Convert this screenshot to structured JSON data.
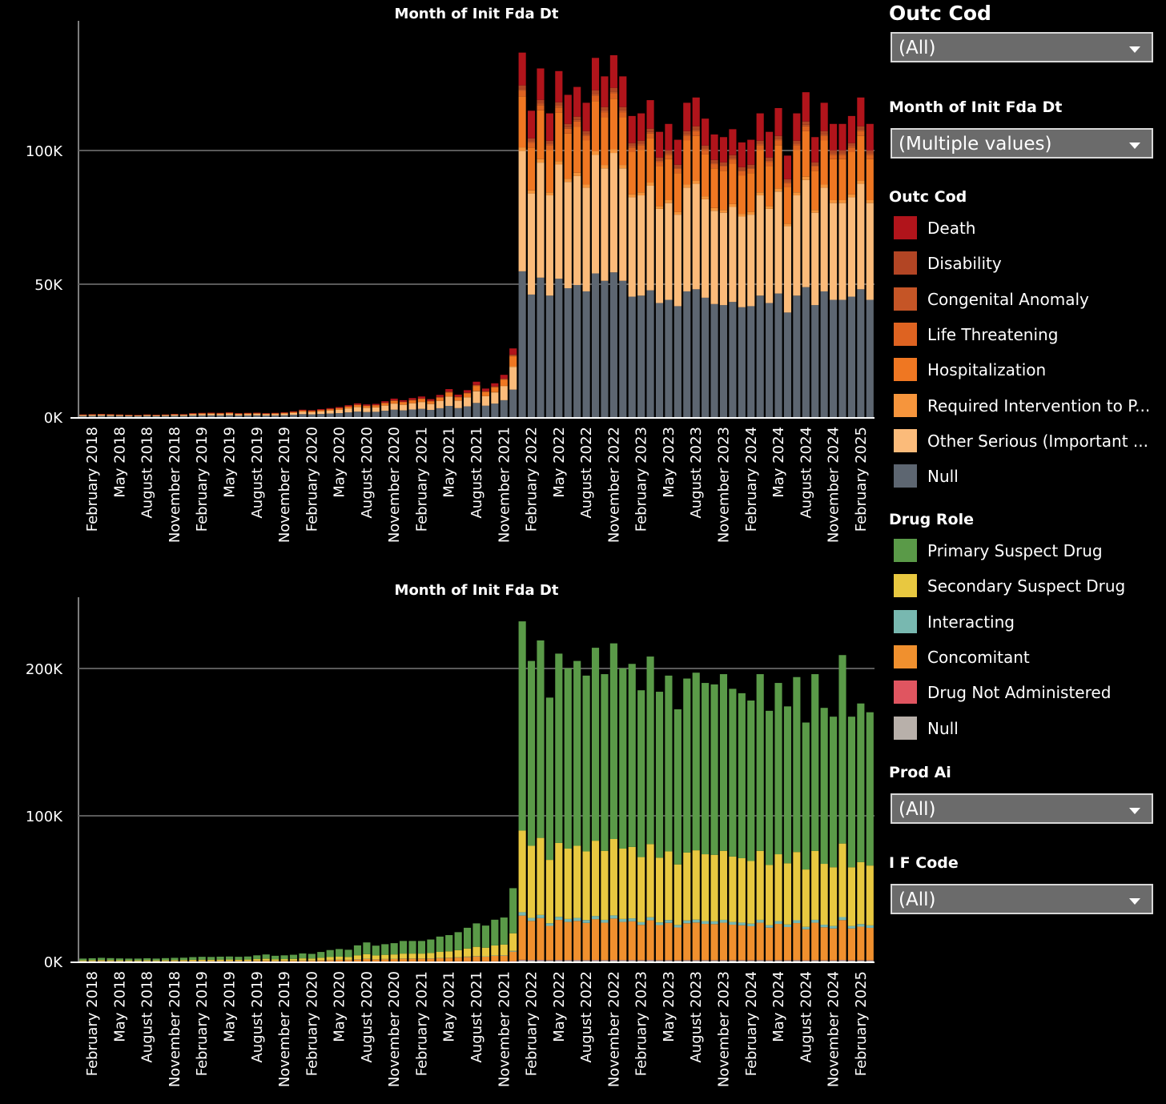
{
  "chart_data": [
    {
      "type": "bar",
      "stacked": true,
      "title": "Month of Init Fda Dt",
      "yticks": [
        "0K",
        "50K",
        "100K"
      ],
      "ylim": [
        0,
        147000
      ],
      "x_tick_labels": [
        "February 2018",
        "May 2018",
        "August 2018",
        "November 2018",
        "February 2019",
        "May 2019",
        "August 2019",
        "November 2019",
        "February 2020",
        "May 2020",
        "August 2020",
        "November 2020",
        "February 2021",
        "May 2021",
        "August 2021",
        "November 2021",
        "February 2022",
        "May 2022",
        "August 2022",
        "November 2022",
        "February 2023",
        "May 2023",
        "August 2023",
        "November 2023",
        "February 2024",
        "May 2024",
        "August 2024",
        "November 2024",
        "February 2025"
      ],
      "categories": [
        "Jan 2018",
        "Feb 2018",
        "Mar 2018",
        "Apr 2018",
        "May 2018",
        "Jun 2018",
        "Jul 2018",
        "Aug 2018",
        "Sep 2018",
        "Oct 2018",
        "Nov 2018",
        "Dec 2018",
        "Jan 2019",
        "Feb 2019",
        "Mar 2019",
        "Apr 2019",
        "May 2019",
        "Jun 2019",
        "Jul 2019",
        "Aug 2019",
        "Sep 2019",
        "Oct 2019",
        "Nov 2019",
        "Dec 2019",
        "Jan 2020",
        "Feb 2020",
        "Mar 2020",
        "Apr 2020",
        "May 2020",
        "Jun 2020",
        "Jul 2020",
        "Aug 2020",
        "Sep 2020",
        "Oct 2020",
        "Nov 2020",
        "Dec 2020",
        "Jan 2021",
        "Feb 2021",
        "Mar 2021",
        "Apr 2021",
        "May 2021",
        "Jun 2021",
        "Jul 2021",
        "Aug 2021",
        "Sep 2021",
        "Oct 2021",
        "Nov 2021",
        "Dec 2021",
        "Jan 2022",
        "Feb 2022",
        "Mar 2022",
        "Apr 2022",
        "May 2022",
        "Jun 2022",
        "Jul 2022",
        "Aug 2022",
        "Sep 2022",
        "Oct 2022",
        "Nov 2022",
        "Dec 2022",
        "Jan 2023",
        "Feb 2023",
        "Mar 2023",
        "Apr 2023",
        "May 2023",
        "Jun 2023",
        "Jul 2023",
        "Aug 2023",
        "Sep 2023",
        "Oct 2023",
        "Nov 2023",
        "Dec 2023",
        "Jan 2024",
        "Feb 2024",
        "Mar 2024",
        "Apr 2024",
        "May 2024",
        "Jun 2024",
        "Jul 2024",
        "Aug 2024",
        "Sep 2024",
        "Oct 2024",
        "Nov 2024",
        "Dec 2024",
        "Jan 2025",
        "Feb 2025",
        "Mar 2025"
      ],
      "totals": [
        1000,
        1100,
        1200,
        1100,
        1000,
        900,
        800,
        1000,
        900,
        1000,
        1200,
        1100,
        1500,
        1600,
        1700,
        1600,
        1800,
        1500,
        1600,
        1700,
        1500,
        1600,
        1800,
        2200,
        2800,
        2600,
        3000,
        3400,
        3800,
        4500,
        5200,
        4800,
        5000,
        6000,
        7000,
        6400,
        7200,
        7800,
        6800,
        8400,
        10600,
        8500,
        10200,
        13400,
        10800,
        12800,
        16000,
        26000,
        138000,
        116000,
        132000,
        115000,
        131000,
        122000,
        125000,
        119000,
        136000,
        129000,
        137000,
        129000,
        114000,
        115000,
        120000,
        108000,
        111000,
        105000,
        119000,
        121000,
        113000,
        107000,
        106000,
        109000,
        104000,
        105000,
        115000,
        108000,
        117000,
        99000,
        115000,
        123000,
        106000,
        119000,
        111000,
        111000,
        114000,
        121000,
        111000
      ],
      "segment_fractions": [
        {
          "name": "Null",
          "value": 0.4
        },
        {
          "name": "Other Serious (Important ...",
          "value": 0.33
        },
        {
          "name": "Required Intervention to P...",
          "value": 0.01
        },
        {
          "name": "Hospitalization",
          "value": 0.14
        },
        {
          "name": "Life Threatening",
          "value": 0.015
        },
        {
          "name": "Congenital Anomaly",
          "value": 0.005
        },
        {
          "name": "Disability",
          "value": 0.01
        },
        {
          "name": "Death",
          "value": 0.09
        }
      ]
    },
    {
      "type": "bar",
      "stacked": true,
      "title": "Month of Init Fda Dt",
      "yticks": [
        "0K",
        "100K",
        "200K"
      ],
      "ylim": [
        0,
        243000
      ],
      "x_tick_labels": [
        "February 2018",
        "May 2018",
        "August 2018",
        "November 2018",
        "February 2019",
        "May 2019",
        "August 2019",
        "November 2019",
        "February 2020",
        "May 2020",
        "August 2020",
        "November 2020",
        "February 2021",
        "May 2021",
        "August 2021",
        "November 2021",
        "February 2022",
        "May 2022",
        "August 2022",
        "November 2022",
        "February 2023",
        "May 2023",
        "August 2023",
        "November 2023",
        "February 2024",
        "May 2024",
        "August 2024",
        "November 2024",
        "February 2025"
      ],
      "categories": [
        "Jan 2018",
        "Feb 2018",
        "Mar 2018",
        "Apr 2018",
        "May 2018",
        "Jun 2018",
        "Jul 2018",
        "Aug 2018",
        "Sep 2018",
        "Oct 2018",
        "Nov 2018",
        "Dec 2018",
        "Jan 2019",
        "Feb 2019",
        "Mar 2019",
        "Apr 2019",
        "May 2019",
        "Jun 2019",
        "Jul 2019",
        "Aug 2019",
        "Sep 2019",
        "Oct 2019",
        "Nov 2019",
        "Dec 2019",
        "Jan 2020",
        "Feb 2020",
        "Mar 2020",
        "Apr 2020",
        "May 2020",
        "Jun 2020",
        "Jul 2020",
        "Aug 2020",
        "Sep 2020",
        "Oct 2020",
        "Nov 2020",
        "Dec 2020",
        "Jan 2021",
        "Feb 2021",
        "Mar 2021",
        "Apr 2021",
        "May 2021",
        "Jun 2021",
        "Jul 2021",
        "Aug 2021",
        "Sep 2021",
        "Oct 2021",
        "Nov 2021",
        "Dec 2021",
        "Jan 2022",
        "Feb 2022",
        "Mar 2022",
        "Apr 2022",
        "May 2022",
        "Jun 2022",
        "Jul 2022",
        "Aug 2022",
        "Sep 2022",
        "Oct 2022",
        "Nov 2022",
        "Dec 2022",
        "Jan 2023",
        "Feb 2023",
        "Mar 2023",
        "Apr 2023",
        "May 2023",
        "Jun 2023",
        "Jul 2023",
        "Aug 2023",
        "Sep 2023",
        "Oct 2023",
        "Nov 2023",
        "Dec 2023",
        "Jan 2024",
        "Feb 2024",
        "Mar 2024",
        "Apr 2024",
        "May 2024",
        "Jun 2024",
        "Jul 2024",
        "Aug 2024",
        "Sep 2024",
        "Oct 2024",
        "Nov 2024",
        "Dec 2024",
        "Jan 2025",
        "Feb 2025",
        "Mar 2025"
      ],
      "totals": [
        2000,
        2200,
        2500,
        2300,
        2100,
        2000,
        2000,
        2200,
        2000,
        2300,
        2500,
        2600,
        3000,
        3200,
        3100,
        3300,
        3400,
        3200,
        3400,
        4200,
        4800,
        3900,
        4200,
        4600,
        5500,
        5200,
        6500,
        7800,
        8500,
        8000,
        11000,
        13000,
        10800,
        11800,
        12500,
        14000,
        14000,
        14000,
        15000,
        17000,
        18000,
        20000,
        23000,
        26000,
        24500,
        28500,
        30000,
        50000,
        232000,
        205000,
        219000,
        180000,
        210000,
        200000,
        205000,
        195000,
        214000,
        196000,
        217000,
        200000,
        203000,
        185000,
        208000,
        184000,
        195000,
        172000,
        193000,
        197000,
        190000,
        189000,
        196000,
        186000,
        183000,
        178000,
        196000,
        171000,
        190000,
        174000,
        194000,
        163000,
        196000,
        173000,
        167000,
        209000,
        167000,
        176000,
        170000
      ],
      "segment_fractions": [
        {
          "name": "Null",
          "value": 0.004
        },
        {
          "name": "Drug Not Administered",
          "value": 0.001
        },
        {
          "name": "Concomitant",
          "value": 0.13
        },
        {
          "name": "Interacting",
          "value": 0.01
        },
        {
          "name": "Secondary Suspect Drug",
          "value": 0.24
        },
        {
          "name": "Primary Suspect Drug",
          "value": 0.615
        }
      ]
    }
  ],
  "panel": {
    "outc_cod_filter": {
      "title": "Outc Cod",
      "value": "(All)"
    },
    "month_filter": {
      "title": "Month of Init Fda Dt",
      "value": "(Multiple values)"
    },
    "outc_cod_legend": {
      "title": "Outc Cod",
      "items": [
        {
          "label": "Death",
          "color": "#b1141b"
        },
        {
          "label": "Disability",
          "color": "#b24524"
        },
        {
          "label": "Congenital Anomaly",
          "color": "#c55526"
        },
        {
          "label": "Life Threatening",
          "color": "#de6321"
        },
        {
          "label": "Hospitalization",
          "color": "#ef7722"
        },
        {
          "label": "Required Intervention to P...",
          "color": "#f6953c"
        },
        {
          "label": "Other Serious (Important ...",
          "color": "#fbbb7a"
        },
        {
          "label": "Null",
          "color": "#5d6671"
        }
      ]
    },
    "drug_role_legend": {
      "title": "Drug Role",
      "items": [
        {
          "label": "Primary Suspect Drug",
          "color": "#5a9a48"
        },
        {
          "label": "Secondary Suspect Drug",
          "color": "#e8c840"
        },
        {
          "label": "Interacting",
          "color": "#78b8b0"
        },
        {
          "label": "Concomitant",
          "color": "#f0902e"
        },
        {
          "label": "Drug Not Administered",
          "color": "#e05560"
        },
        {
          "label": "Null",
          "color": "#b8b0aa"
        }
      ]
    },
    "prod_ai_filter": {
      "title": "Prod Ai",
      "value": "(All)"
    },
    "if_code_filter": {
      "title": "I F Code",
      "value": "(All)"
    }
  }
}
